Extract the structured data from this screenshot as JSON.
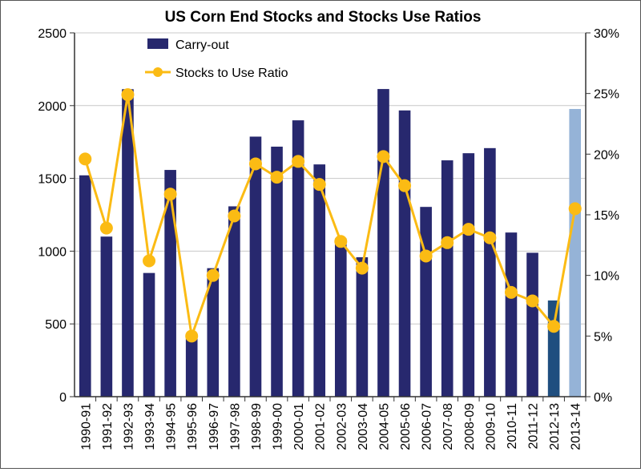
{
  "chart_data": {
    "type": "bar+line",
    "title": "US Corn End Stocks and Stocks Use Ratios",
    "categories": [
      "1990-91",
      "1991-92",
      "1992-93",
      "1993-94",
      "1994-95",
      "1995-96",
      "1996-97",
      "1997-98",
      "1998-99",
      "1999-00",
      "2000-01",
      "2001-02",
      "2002-03",
      "2003-04",
      "2004-05",
      "2005-06",
      "2006-07",
      "2007-08",
      "2008-09",
      "2009-10",
      "2010-11",
      "2011-12",
      "2012-13",
      "2013-14"
    ],
    "series": [
      {
        "name": "Carry-out",
        "type": "bar",
        "axis": "left",
        "color": "#27286e",
        "values": [
          1521,
          1100,
          2113,
          850,
          1558,
          426,
          883,
          1308,
          1787,
          1718,
          1899,
          1596,
          1087,
          958,
          2114,
          1967,
          1304,
          1624,
          1673,
          1708,
          1128,
          989,
          661,
          1977
        ],
        "highlight_colors": {
          "2012-13": "#1f4e7f",
          "2013-14": "#95b3d7"
        }
      },
      {
        "name": "Stocks to Use Ratio",
        "type": "line",
        "axis": "right",
        "color": "#fbbb14",
        "values": [
          19.6,
          13.9,
          24.9,
          11.2,
          16.7,
          5.0,
          10.0,
          14.9,
          19.2,
          18.1,
          19.4,
          17.5,
          12.8,
          10.6,
          19.8,
          17.4,
          11.6,
          12.7,
          13.8,
          13.1,
          8.6,
          7.9,
          5.8,
          15.5
        ]
      }
    ],
    "y_left": {
      "ylim": [
        0,
        2500
      ],
      "ticks": [
        "0",
        "500",
        "1000",
        "1500",
        "2000",
        "2500"
      ]
    },
    "y_right": {
      "ylim": [
        0,
        30
      ],
      "ticks": [
        "0%",
        "5%",
        "10%",
        "15%",
        "20%",
        "25%",
        "30%"
      ]
    },
    "grid": true,
    "legend": "top-left"
  }
}
